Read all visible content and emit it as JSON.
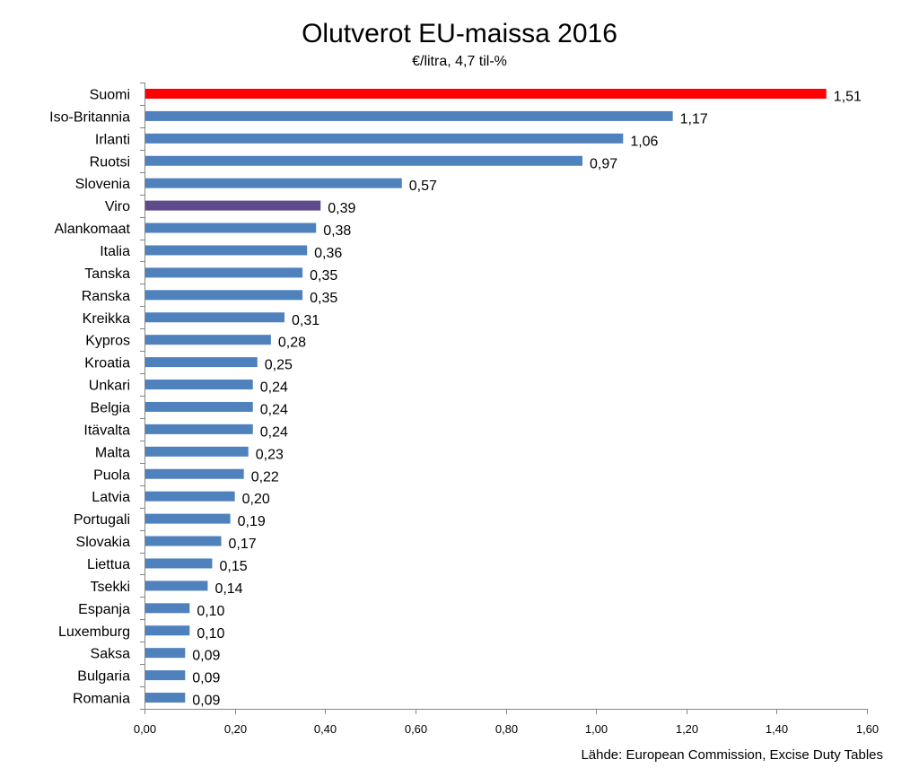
{
  "chart_data": {
    "type": "bar",
    "orientation": "horizontal",
    "title": "Olutverot EU-maissa 2016",
    "subtitle": "€/litra, 4,7 til-%",
    "source": "Lähde: European Commission, Excise Duty Tables",
    "xlim": [
      0,
      1.6
    ],
    "xticks": [
      "0,00",
      "0,20",
      "0,40",
      "0,60",
      "0,80",
      "1,00",
      "1,20",
      "1,40",
      "1,60"
    ],
    "grid": false,
    "legend": "none",
    "categories": [
      "Suomi",
      "Iso-Britannia",
      "Irlanti",
      "Ruotsi",
      "Slovenia",
      "Viro",
      "Alankomaat",
      "Italia",
      "Tanska",
      "Ranska",
      "Kreikka",
      "Kypros",
      "Kroatia",
      "Unkari",
      "Belgia",
      "Itävalta",
      "Malta",
      "Puola",
      "Latvia",
      "Portugali",
      "Slovakia",
      "Liettua",
      "Tsekki",
      "Espanja",
      "Luxemburg",
      "Saksa",
      "Bulgaria",
      "Romania"
    ],
    "values": [
      1.51,
      1.17,
      1.06,
      0.97,
      0.57,
      0.39,
      0.38,
      0.36,
      0.35,
      0.35,
      0.31,
      0.28,
      0.25,
      0.24,
      0.24,
      0.24,
      0.23,
      0.22,
      0.2,
      0.19,
      0.17,
      0.15,
      0.14,
      0.1,
      0.1,
      0.09,
      0.09,
      0.09
    ],
    "value_labels": [
      "1,51",
      "1,17",
      "1,06",
      "0,97",
      "0,57",
      "0,39",
      "0,38",
      "0,36",
      "0,35",
      "0,35",
      "0,31",
      "0,28",
      "0,25",
      "0,24",
      "0,24",
      "0,24",
      "0,23",
      "0,22",
      "0,20",
      "0,19",
      "0,17",
      "0,15",
      "0,14",
      "0,10",
      "0,10",
      "0,09",
      "0,09",
      "0,09"
    ],
    "colors": {
      "default": "#4F81BD",
      "Suomi": "#FF0000",
      "Viro": "#5F4B8B"
    }
  }
}
